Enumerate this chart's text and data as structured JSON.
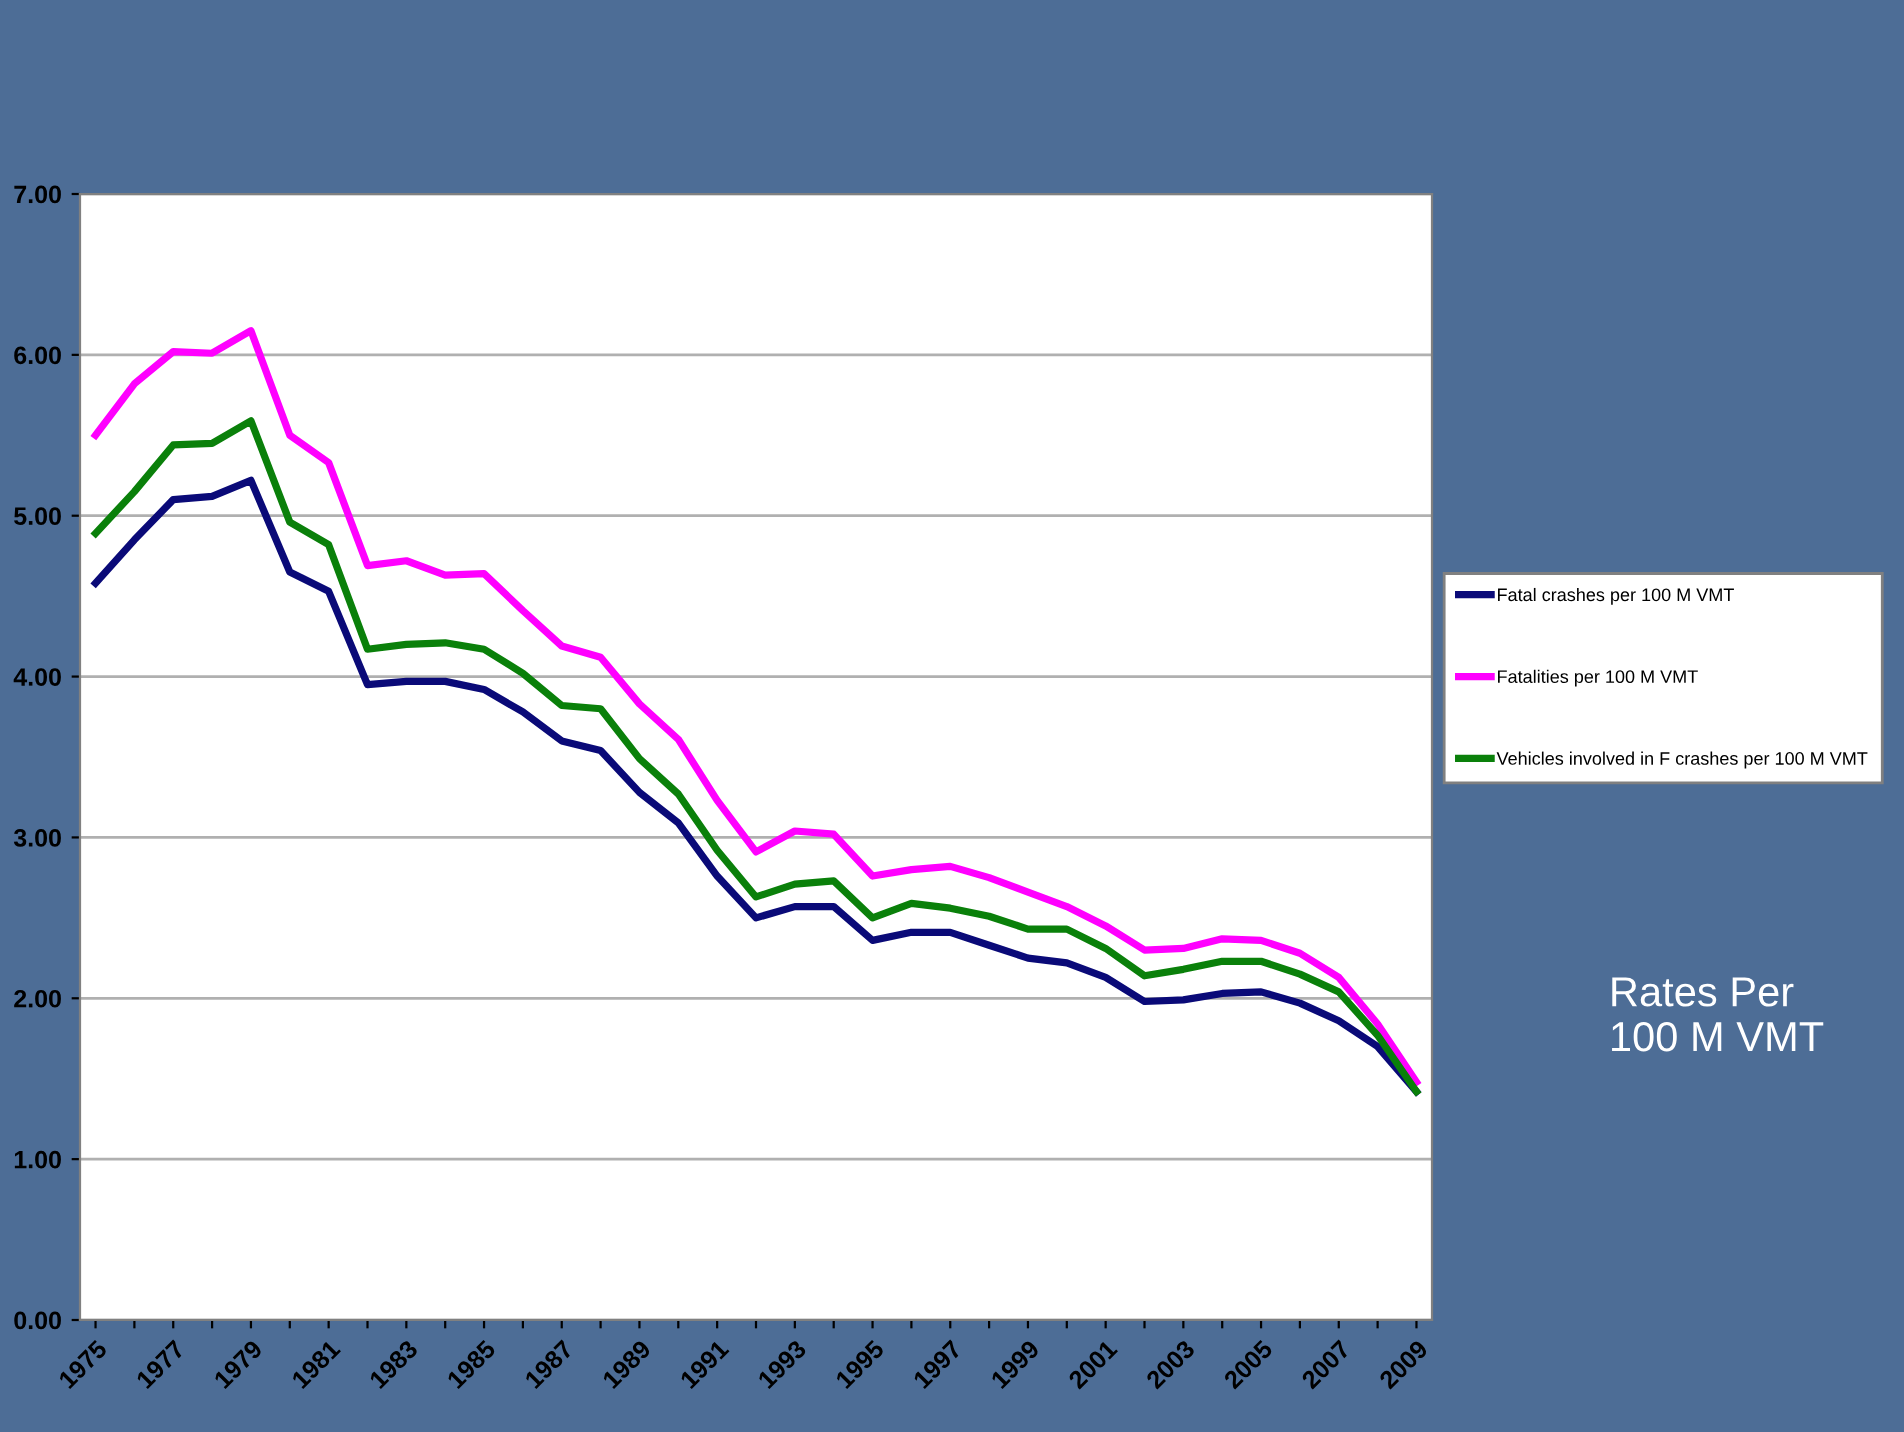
{
  "chart_data": {
    "type": "line",
    "categories": [
      "1975",
      null,
      "1977",
      null,
      "1979",
      null,
      "1981",
      null,
      "1983",
      null,
      "1985",
      null,
      "1987",
      null,
      "1989",
      null,
      "1991",
      null,
      "1993",
      null,
      "1995",
      null,
      "1997",
      null,
      "1999",
      null,
      "2001",
      null,
      "2003",
      null,
      "2005",
      null,
      "2007",
      null,
      "2009"
    ],
    "series": [
      {
        "name": "Fatal crashes per 100 M VMT",
        "color": "#0a0a78",
        "values": [
          4.58,
          4.85,
          5.1,
          5.12,
          5.22,
          4.65,
          4.53,
          3.95,
          3.97,
          3.97,
          3.92,
          3.78,
          3.6,
          3.54,
          3.28,
          3.09,
          2.76,
          2.5,
          2.57,
          2.57,
          2.36,
          2.41,
          2.41,
          2.33,
          2.25,
          2.22,
          2.13,
          1.98,
          1.99,
          2.03,
          2.04,
          1.97,
          1.86,
          1.7,
          1.42
        ]
      },
      {
        "name": "Fatalities per 100 M VMT",
        "color": "#ff00ff",
        "values": [
          5.5,
          5.82,
          6.02,
          6.01,
          6.15,
          5.5,
          5.33,
          4.69,
          4.72,
          4.63,
          4.64,
          4.41,
          4.19,
          4.12,
          3.83,
          3.61,
          3.23,
          2.91,
          3.04,
          3.02,
          2.76,
          2.8,
          2.82,
          2.75,
          2.66,
          2.57,
          2.45,
          2.3,
          2.31,
          2.37,
          2.36,
          2.28,
          2.13,
          1.84,
          1.48
        ]
      },
      {
        "name": "Vehicles involved in F crashes per 100 M VMT",
        "color": "#0a800a",
        "values": [
          4.89,
          5.15,
          5.44,
          5.45,
          5.59,
          4.96,
          4.82,
          4.17,
          4.2,
          4.21,
          4.17,
          4.02,
          3.82,
          3.8,
          3.49,
          3.27,
          2.92,
          2.63,
          2.71,
          2.73,
          2.5,
          2.59,
          2.56,
          2.51,
          2.43,
          2.43,
          2.31,
          2.14,
          2.18,
          2.23,
          2.23,
          2.15,
          2.04,
          1.77,
          1.42
        ]
      }
    ],
    "ylim": [
      0,
      7
    ],
    "yticks": [
      {
        "value": 0,
        "label": "0.00"
      },
      {
        "value": 1,
        "label": "1.00"
      },
      {
        "value": 2,
        "label": "2.00"
      },
      {
        "value": 3,
        "label": "3.00"
      },
      {
        "value": 4,
        "label": "4.00"
      },
      {
        "value": 5,
        "label": "5.00"
      },
      {
        "value": 6,
        "label": "6.00"
      },
      {
        "value": 7,
        "label": "7.00"
      }
    ],
    "grid": "y",
    "legend": "right",
    "marker": "none",
    "line_style": "solid",
    "annotations": [
      "Rates Per\n100 M VMT"
    ]
  }
}
